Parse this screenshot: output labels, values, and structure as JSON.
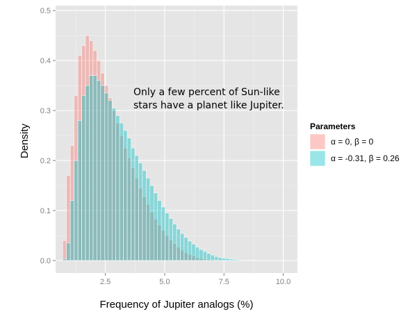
{
  "chart_data": {
    "type": "bar",
    "xlabel": "Frequency of Jupiter analogs (%)",
    "ylabel": "Density",
    "xlim": [
      0.4,
      10.6
    ],
    "ylim": [
      -0.025,
      0.51
    ],
    "x_ticks": [
      "2.5",
      "5.0",
      "7.5",
      "10.0"
    ],
    "y_ticks": [
      "0.0",
      "0.1",
      "0.2",
      "0.3",
      "0.4",
      "0.5"
    ],
    "bin_width": 0.16,
    "bin_start": 0.7,
    "annotation": [
      "Only a few percent of Sun-like",
      "stars have a planet like Jupiter."
    ],
    "legend": {
      "title": "Parameters",
      "placement": "right"
    },
    "grid": true,
    "series": [
      {
        "name": "α = 0, β = 0",
        "color": "#f8766d",
        "values": [
          0.04,
          0.17,
          0.23,
          0.33,
          0.41,
          0.43,
          0.45,
          0.44,
          0.42,
          0.4,
          0.375,
          0.35,
          0.325,
          0.3,
          0.275,
          0.25,
          0.225,
          0.205,
          0.185,
          0.165,
          0.145,
          0.128,
          0.112,
          0.097,
          0.083,
          0.071,
          0.06,
          0.05,
          0.041,
          0.034,
          0.027,
          0.021,
          0.016,
          0.012,
          0.009,
          0.006,
          0.004,
          0.003,
          0.002,
          0.0015,
          0.001
        ]
      },
      {
        "name": "α = -0.31, β = 0.26",
        "color": "#00bfc4",
        "values": [
          0.003,
          0.035,
          0.12,
          0.2,
          0.28,
          0.33,
          0.35,
          0.37,
          0.37,
          0.36,
          0.35,
          0.335,
          0.32,
          0.305,
          0.29,
          0.275,
          0.26,
          0.245,
          0.225,
          0.21,
          0.195,
          0.18,
          0.165,
          0.15,
          0.135,
          0.12,
          0.107,
          0.095,
          0.084,
          0.073,
          0.063,
          0.054,
          0.046,
          0.039,
          0.033,
          0.027,
          0.022,
          0.018,
          0.014,
          0.011,
          0.008,
          0.006,
          0.005,
          0.004,
          0.003,
          0.002,
          0.0015,
          0.001,
          0.0008,
          0.0006,
          0.0005,
          0.0004,
          0.0003,
          0.0002,
          0.0002,
          0.0001,
          0.0001
        ]
      }
    ]
  }
}
